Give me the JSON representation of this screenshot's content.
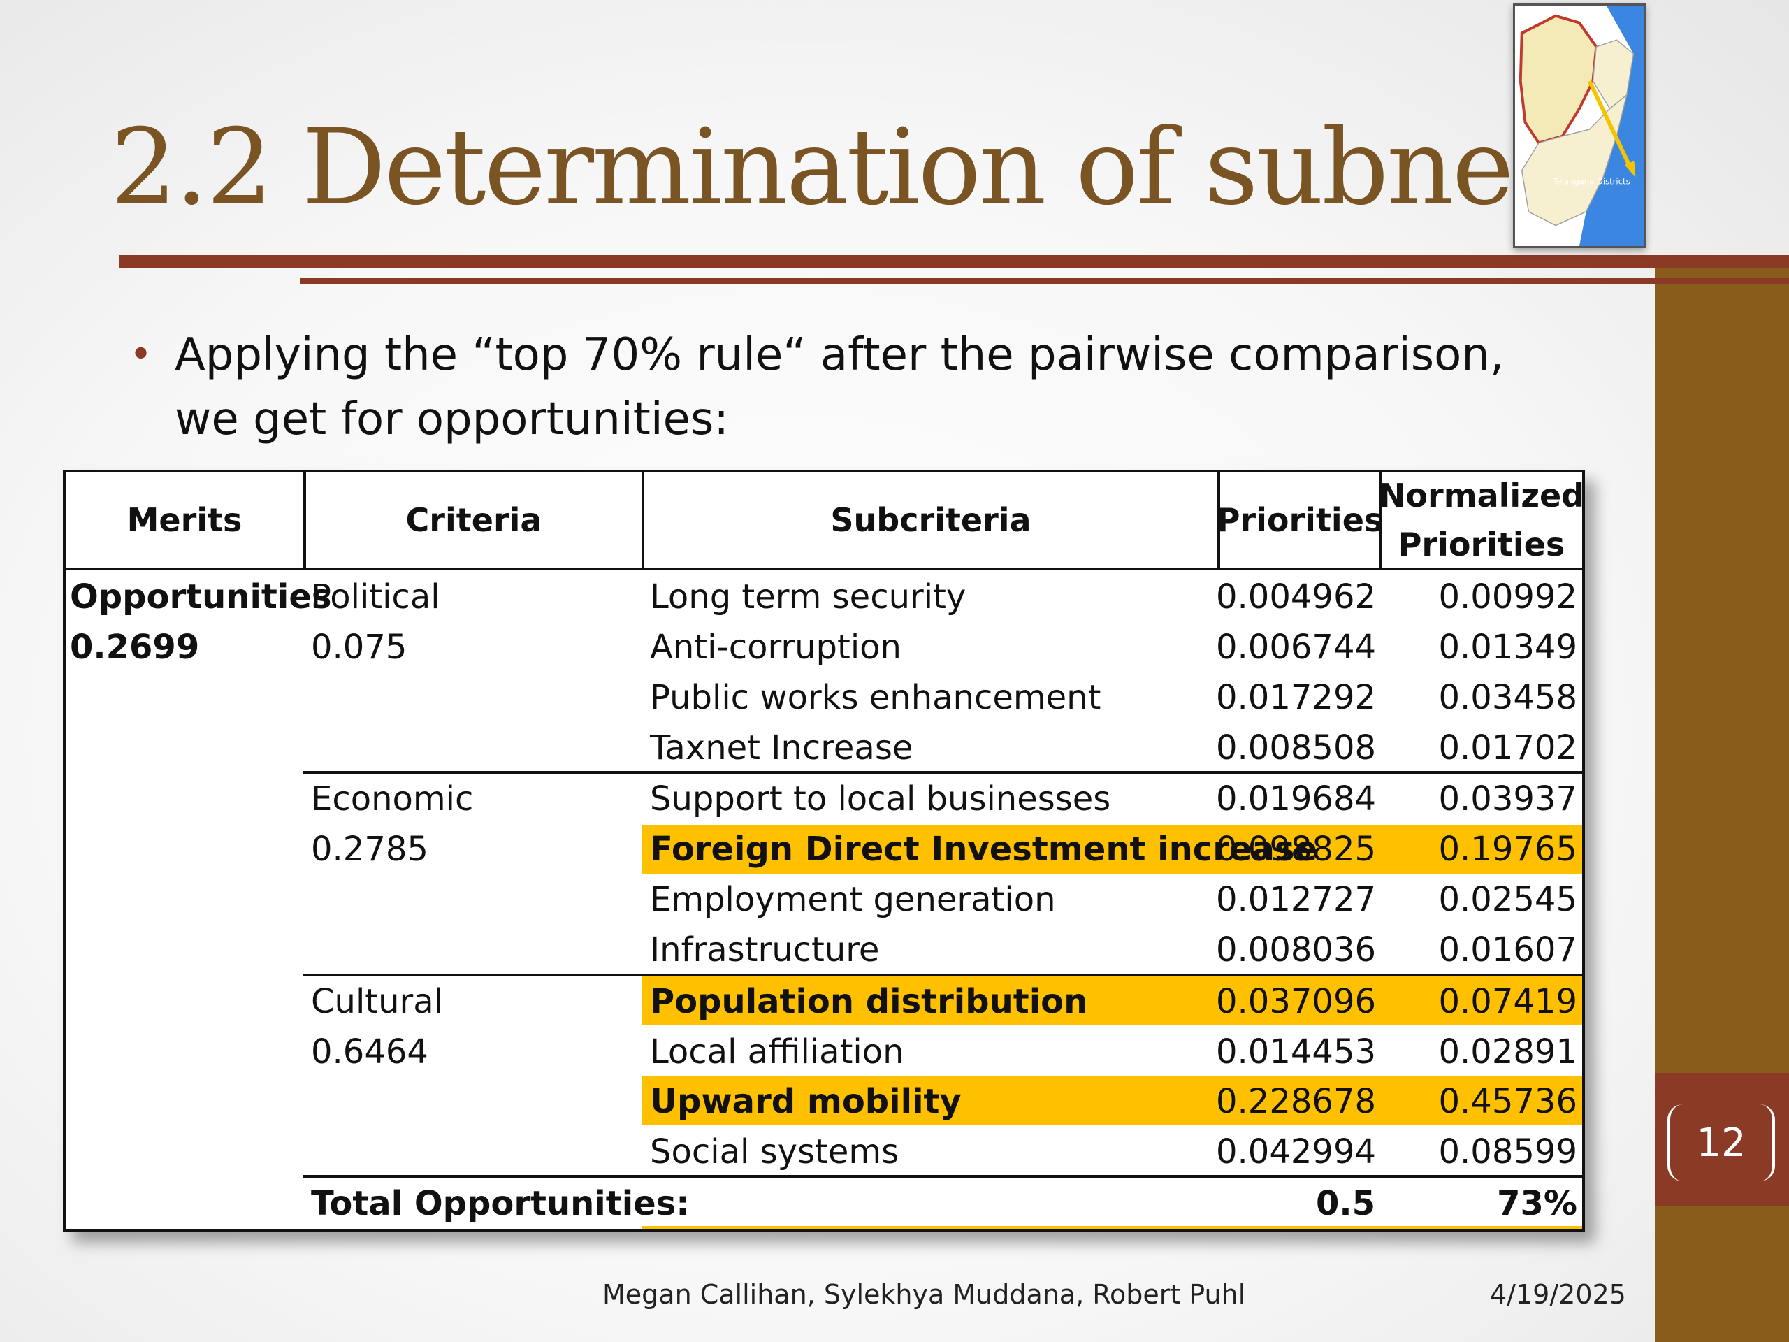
{
  "slide": {
    "title": "2.2 Determination of subnets",
    "bullet_line1": "Applying the “top 70% rule“ after the pairwise comparison,",
    "bullet_line2": "we get for opportunities:",
    "page_number": "12",
    "authors": "Megan Callihan, Sylekhya Muddana, Robert Puhl",
    "date": "4/19/2025",
    "colors": {
      "accent_brown": "#8b3a26",
      "band_gold": "#8a5c1c",
      "highlight": "#ffc000",
      "title": "#7b5424"
    }
  },
  "map": {
    "icon": "telangana-map-icon",
    "caption": "Telangana Districts"
  },
  "table": {
    "headers": {
      "merits": "Merits",
      "criteria": "Criteria",
      "subcriteria": "Subcriteria",
      "priorities": "Priorities",
      "normalized_1": "Normalized",
      "normalized_2": "Priorities"
    },
    "merit_name": "Opportunities",
    "merit_value": "0.2699",
    "groups": [
      {
        "name": "Political",
        "value": "0.075"
      },
      {
        "name": "Economic",
        "value": "0.2785"
      },
      {
        "name": "Cultural",
        "value": "0.6464"
      }
    ],
    "rows": [
      {
        "subcriteria": "Long term security",
        "priority": "0.004962",
        "normalized": "0.00992",
        "highlight": false
      },
      {
        "subcriteria": "Anti-corruption",
        "priority": "0.006744",
        "normalized": "0.01349",
        "highlight": false
      },
      {
        "subcriteria": "Public works enhancement",
        "priority": "0.017292",
        "normalized": "0.03458",
        "highlight": false
      },
      {
        "subcriteria": "Taxnet Increase",
        "priority": "0.008508",
        "normalized": "0.01702",
        "highlight": false
      },
      {
        "subcriteria": "Support to local businesses",
        "priority": "0.019684",
        "normalized": "0.03937",
        "highlight": false
      },
      {
        "subcriteria": "Foreign Direct Investment increase",
        "priority": "0.098825",
        "normalized": "0.19765",
        "highlight": true
      },
      {
        "subcriteria": "Employment generation",
        "priority": "0.012727",
        "normalized": "0.02545",
        "highlight": false
      },
      {
        "subcriteria": "Infrastructure",
        "priority": "0.008036",
        "normalized": "0.01607",
        "highlight": false
      },
      {
        "subcriteria": "Population distribution",
        "priority": "0.037096",
        "normalized": "0.07419",
        "highlight": true
      },
      {
        "subcriteria": "Local affiliation",
        "priority": "0.014453",
        "normalized": "0.02891",
        "highlight": false
      },
      {
        "subcriteria": "Upward mobility",
        "priority": "0.228678",
        "normalized": "0.45736",
        "highlight": true
      },
      {
        "subcriteria": "Social systems",
        "priority": "0.042994",
        "normalized": "0.08599",
        "highlight": false
      }
    ],
    "total_label": "Total Opportunities:",
    "total_priority": "0.5",
    "total_normalized": "73%"
  }
}
